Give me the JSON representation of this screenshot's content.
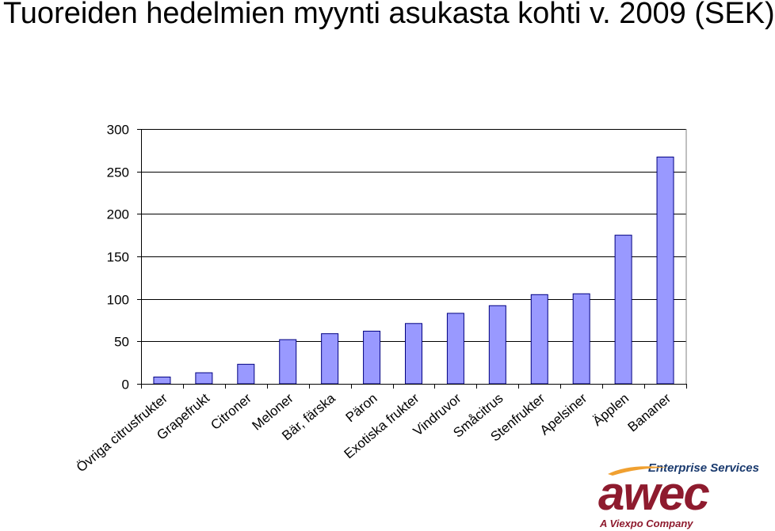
{
  "title": "Tuoreiden hedelmien myynti asukasta kohti v. 2009 (SEK)",
  "chart_data": {
    "type": "bar",
    "categories": [
      "Övriga citrusfrukter",
      "Grapefrukt",
      "Citroner",
      "Meloner",
      "Bär, färska",
      "Päron",
      "Exotiska frukter",
      "Vindruvor",
      "Småcitrus",
      "Stenfrukter",
      "Apelsiner",
      "Äpplen",
      "Bananer"
    ],
    "values": [
      8,
      13,
      23,
      52,
      59,
      62,
      71,
      83,
      92,
      105,
      106,
      175,
      267
    ],
    "ylim": [
      0,
      300
    ],
    "yticks": [
      0,
      50,
      100,
      150,
      200,
      250,
      300
    ],
    "grid": true,
    "bar_color": "#9999ff",
    "bar_border": "#000080"
  },
  "logo": {
    "division": "Enterprise Services",
    "wordmark": "awec",
    "tagline": "A Viexpo Company",
    "primary_color": "#8e1b2e",
    "accent_color": "#f0a030"
  }
}
